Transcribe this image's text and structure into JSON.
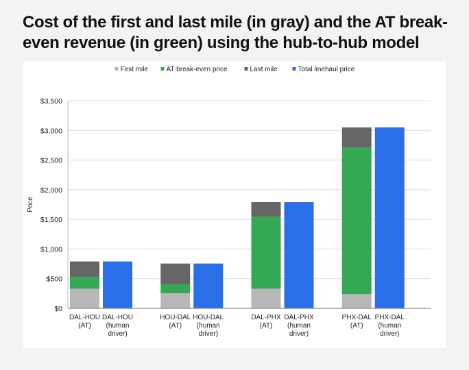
{
  "title": "Cost of the first and last mile (in gray) and the AT break-even revenue (in green) using the hub-to-hub model",
  "chart_data": {
    "type": "bar",
    "stacked": true,
    "title": "Cost of the first and last mile (in gray) and the AT break-even revenue (in green) using the hub-to-hub model",
    "ylabel": "Price",
    "xlabel": "",
    "ylim": [
      0,
      3500
    ],
    "yticks": [
      "$0",
      "$500",
      "$1,000",
      "$1,500",
      "$2,000",
      "$2,500",
      "$3,000",
      "$3,500"
    ],
    "yticks_values": [
      0,
      500,
      1000,
      1500,
      2000,
      2500,
      3000,
      3500
    ],
    "grid": true,
    "legend_position": "top",
    "categories": [
      [
        "DAL-HOU",
        "(AT)"
      ],
      [
        "DAL-HOU",
        "(human",
        "driver)"
      ],
      [
        "HOU-DAL",
        "(AT)"
      ],
      [
        "HOU-DAL",
        "(human",
        "driver)"
      ],
      [
        "DAL-PHX",
        "(AT)"
      ],
      [
        "DAL-PHX",
        "(human",
        "driver)"
      ],
      [
        "PHX-DAL",
        "(AT)"
      ],
      [
        "PHX-DAL",
        "(human",
        "driver)"
      ]
    ],
    "series": [
      {
        "name": "First mile",
        "color": "#b7b7b7",
        "values": [
          330,
          0,
          255,
          0,
          330,
          0,
          240,
          0
        ]
      },
      {
        "name": "AT break-even price",
        "color": "#34a853",
        "values": [
          200,
          0,
          155,
          0,
          1215,
          0,
          2470,
          0
        ]
      },
      {
        "name": "Last mile",
        "color": "#666666",
        "values": [
          260,
          0,
          345,
          0,
          245,
          0,
          340,
          0
        ]
      },
      {
        "name": "Total linehaul price",
        "color": "#2a6fe8",
        "values": [
          0,
          790,
          0,
          755,
          0,
          1790,
          0,
          3050
        ]
      }
    ]
  }
}
